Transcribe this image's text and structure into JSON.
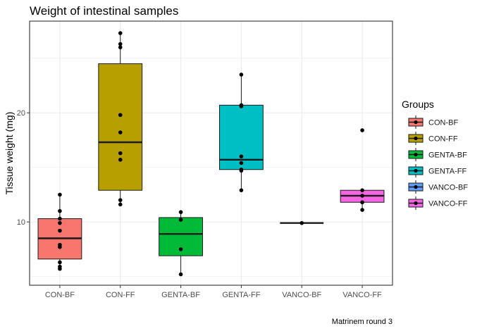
{
  "chart_data": {
    "type": "boxplot",
    "title": "Weight of intestinal samples",
    "xlabel": "",
    "ylabel": "Tissue weight (mg)",
    "caption": "Matrinem round 3",
    "ylim": [
      4.2,
      28.4
    ],
    "yticks": [
      10,
      20
    ],
    "grid": true,
    "legend": {
      "title": "Groups",
      "position": "right"
    },
    "categories": [
      "CON-BF",
      "CON-FF",
      "GENTA-BF",
      "GENTA-FF",
      "VANCO-BF",
      "VANCO-FF"
    ],
    "series": [
      {
        "category": "CON-BF",
        "color": "#F8766D",
        "box": {
          "min": 5.7,
          "q1": 6.6,
          "median": 8.5,
          "q3": 10.3,
          "max": 12.5
        },
        "points": [
          12.5,
          11.0,
          10.3,
          9.9,
          9.2,
          7.9,
          7.7,
          6.3,
          5.9,
          5.7
        ]
      },
      {
        "category": "CON-FF",
        "color": "#B79F00",
        "box": {
          "min": 11.6,
          "q1": 12.9,
          "median": 17.3,
          "q3": 24.5,
          "max": 27.3
        },
        "points": [
          27.3,
          26.3,
          26.0,
          19.8,
          18.2,
          16.3,
          15.7,
          12.0,
          11.6
        ]
      },
      {
        "category": "GENTA-BF",
        "color": "#00BA38",
        "box": {
          "min": 5.2,
          "q1": 6.9,
          "median": 8.9,
          "q3": 10.4,
          "max": 10.9
        },
        "points": [
          10.9,
          10.2,
          7.5,
          5.2
        ]
      },
      {
        "category": "GENTA-FF",
        "color": "#00BFC4",
        "box": {
          "min": 12.9,
          "q1": 14.8,
          "median": 15.7,
          "q3": 20.7,
          "max": 23.5
        },
        "points": [
          23.5,
          20.7,
          20.6,
          16.0,
          15.4,
          14.8,
          14.7,
          12.9
        ]
      },
      {
        "category": "VANCO-BF",
        "color": "#619CFF",
        "box": {
          "min": 9.9,
          "q1": 9.9,
          "median": 9.9,
          "q3": 9.9,
          "max": 9.9
        },
        "points": [
          9.9
        ]
      },
      {
        "category": "VANCO-FF",
        "color": "#F564E3",
        "box": {
          "min": 11.1,
          "q1": 11.8,
          "median": 12.4,
          "q3": 12.9,
          "max": 12.9
        },
        "points": [
          18.4,
          12.9,
          12.4,
          11.8,
          11.1
        ]
      }
    ]
  }
}
